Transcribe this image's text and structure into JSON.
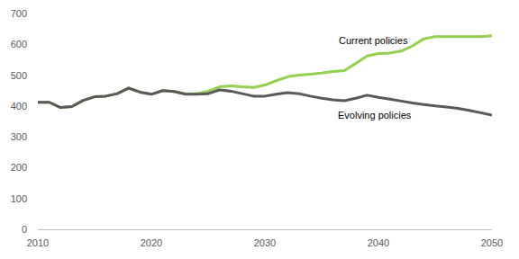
{
  "chart_data": {
    "type": "line",
    "x": [
      2010,
      2011,
      2012,
      2013,
      2014,
      2015,
      2016,
      2017,
      2018,
      2019,
      2020,
      2021,
      2022,
      2023,
      2024,
      2025,
      2026,
      2027,
      2028,
      2029,
      2030,
      2031,
      2032,
      2033,
      2034,
      2035,
      2036,
      2037,
      2038,
      2039,
      2040,
      2041,
      2042,
      2043,
      2044,
      2045,
      2046,
      2047,
      2048,
      2049,
      2050
    ],
    "series": [
      {
        "name": "Current policies",
        "color": "#92d050",
        "values": [
          412,
          412,
          395,
          398,
          418,
          430,
          432,
          440,
          458,
          445,
          438,
          450,
          447,
          440,
          440,
          448,
          462,
          465,
          462,
          460,
          468,
          482,
          495,
          500,
          503,
          507,
          512,
          515,
          538,
          562,
          570,
          572,
          578,
          595,
          618,
          625,
          625,
          625,
          625,
          625,
          628
        ]
      },
      {
        "name": "Evolving policies",
        "color": "#595959",
        "values": [
          412,
          412,
          395,
          398,
          418,
          430,
          432,
          440,
          458,
          445,
          438,
          450,
          447,
          438,
          438,
          440,
          452,
          448,
          440,
          432,
          432,
          438,
          443,
          440,
          432,
          425,
          420,
          417,
          425,
          435,
          428,
          422,
          416,
          410,
          405,
          400,
          397,
          392,
          386,
          378,
          370
        ]
      }
    ],
    "xlim": [
      2010,
      2050
    ],
    "xticks": [
      2010,
      2020,
      2030,
      2040,
      2050
    ],
    "ylim": [
      0,
      700
    ],
    "yticks": [
      0,
      100,
      200,
      300,
      400,
      500,
      600,
      700
    ],
    "grid": false
  }
}
